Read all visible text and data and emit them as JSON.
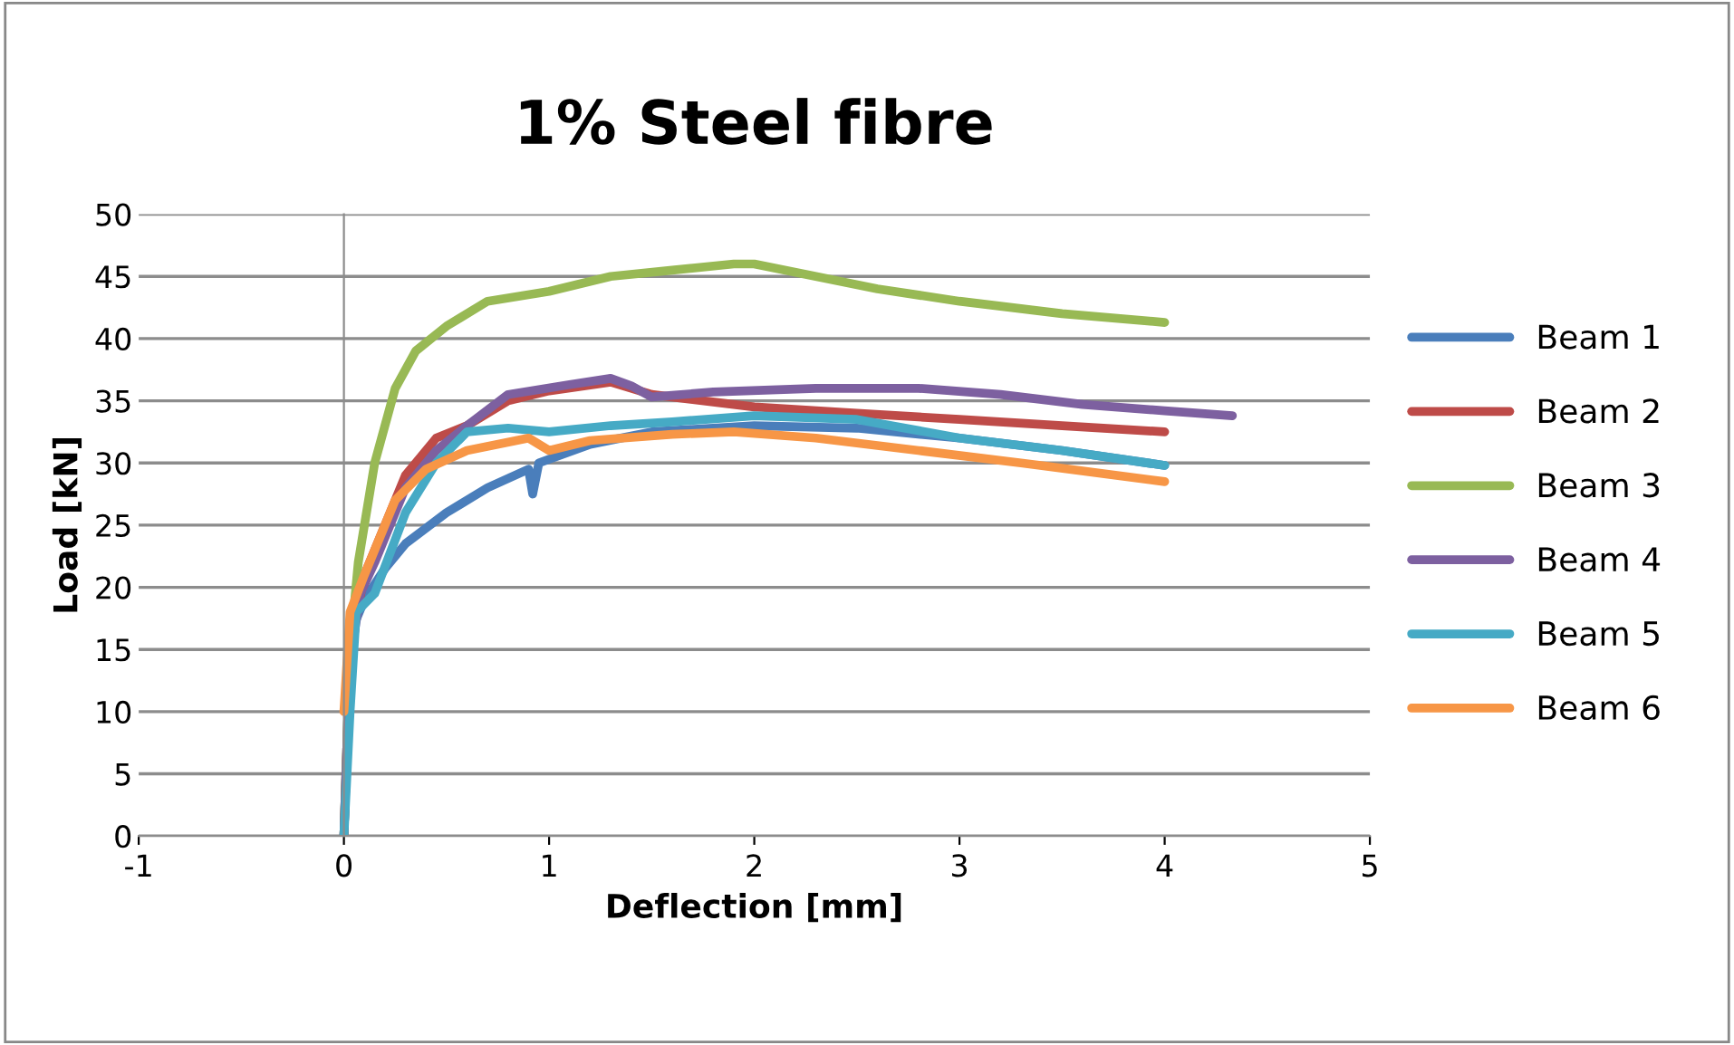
{
  "chart_data": {
    "type": "line",
    "title": "1% Steel fibre",
    "xlabel": "Deflection [mm]",
    "ylabel": "Load [kN]",
    "xlim": [
      -1,
      5
    ],
    "xticks": [
      -1,
      0,
      1,
      2,
      3,
      4,
      5
    ],
    "ylim": [
      0,
      50
    ],
    "yticks": [
      0,
      5,
      10,
      15,
      20,
      25,
      30,
      35,
      40,
      45,
      50
    ],
    "grid": "y",
    "legend": "right",
    "marker": "none",
    "line_style": "solid",
    "series": [
      {
        "name": "Beam 1",
        "color": "#4a7ebb",
        "x": [
          0,
          0.02,
          0.05,
          0.1,
          0.2,
          0.3,
          0.5,
          0.7,
          0.9,
          0.92,
          0.95,
          1.2,
          1.5,
          2,
          2.5,
          3,
          3.5,
          4
        ],
        "values": [
          0,
          10,
          17,
          19,
          21.5,
          23.5,
          26,
          28,
          29.5,
          27.5,
          30,
          31.5,
          32.5,
          33,
          32.8,
          32,
          31,
          29.8
        ]
      },
      {
        "name": "Beam 2",
        "color": "#be4b48",
        "x": [
          0,
          0.03,
          0.1,
          0.2,
          0.3,
          0.45,
          0.6,
          0.8,
          1.0,
          1.3,
          1.5,
          2,
          2.5,
          3,
          3.5,
          4
        ],
        "values": [
          0,
          15,
          21,
          25,
          29,
          32,
          33,
          35,
          35.8,
          36.5,
          35.5,
          34.5,
          34,
          33.5,
          33,
          32.5
        ]
      },
      {
        "name": "Beam 3",
        "color": "#98b954",
        "x": [
          0,
          0.03,
          0.07,
          0.15,
          0.25,
          0.35,
          0.5,
          0.7,
          1.0,
          1.3,
          1.6,
          1.9,
          2.0,
          2.3,
          2.6,
          3,
          3.5,
          4
        ],
        "values": [
          0,
          15,
          22,
          30,
          36,
          39,
          41,
          43,
          43.8,
          45,
          45.5,
          46,
          46,
          45,
          44,
          43,
          42,
          41.3
        ]
      },
      {
        "name": "Beam 4",
        "color": "#7d60a0",
        "x": [
          0,
          0.03,
          0.08,
          0.15,
          0.3,
          0.45,
          0.6,
          0.8,
          1.1,
          1.3,
          1.4,
          1.5,
          1.8,
          2.3,
          2.8,
          3.2,
          3.6,
          4,
          4.33
        ],
        "values": [
          0,
          14,
          19.5,
          22,
          28,
          31,
          33,
          35.5,
          36.3,
          36.8,
          36.2,
          35.3,
          35.7,
          36,
          36,
          35.5,
          34.7,
          34.2,
          33.8
        ]
      },
      {
        "name": "Beam 5",
        "color": "#46aac5",
        "x": [
          0,
          0.03,
          0.06,
          0.15,
          0.3,
          0.45,
          0.6,
          0.8,
          1.0,
          1.3,
          1.6,
          2,
          2.5,
          3,
          3.5,
          4
        ],
        "values": [
          0,
          10,
          18,
          19.5,
          26,
          30,
          32.5,
          32.8,
          32.5,
          33,
          33.3,
          33.8,
          33.5,
          32,
          31,
          29.8
        ]
      },
      {
        "name": "Beam 6",
        "color": "#f79646",
        "x": [
          0,
          0.03,
          0.1,
          0.25,
          0.4,
          0.6,
          0.9,
          1.0,
          1.2,
          1.6,
          1.9,
          2.3,
          2.8,
          3.3,
          4
        ],
        "values": [
          10,
          18,
          21,
          27,
          29.5,
          31,
          32,
          31,
          31.8,
          32.3,
          32.5,
          32,
          31,
          30,
          28.5
        ]
      }
    ]
  }
}
